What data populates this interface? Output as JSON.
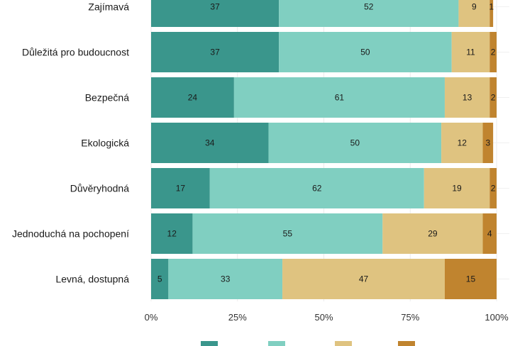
{
  "chart_data": {
    "type": "bar",
    "orientation": "horizontal-stacked",
    "categories": [
      "Zajímavá",
      "Důležitá pro budoucnost",
      "Bezpečná",
      "Ekologická",
      "Důvěryhodná",
      "Jednoduchá na pochopení",
      "Levná, dostupná"
    ],
    "series": [
      {
        "color": "#3a968c",
        "values": [
          37,
          37,
          24,
          34,
          17,
          12,
          5
        ]
      },
      {
        "color": "#80cfc1",
        "values": [
          52,
          50,
          61,
          50,
          62,
          55,
          33
        ]
      },
      {
        "color": "#dfc380",
        "values": [
          9,
          11,
          13,
          12,
          19,
          29,
          47
        ]
      },
      {
        "color": "#c0842f",
        "values": [
          1,
          2,
          2,
          3,
          2,
          4,
          15
        ]
      }
    ],
    "xlim": [
      0,
      100
    ],
    "x_ticks": [
      "0%",
      "25%",
      "50%",
      "75%",
      "100%"
    ],
    "x_tick_values": [
      0,
      25,
      50,
      75,
      100
    ],
    "legend": "bottom",
    "grid": true
  }
}
